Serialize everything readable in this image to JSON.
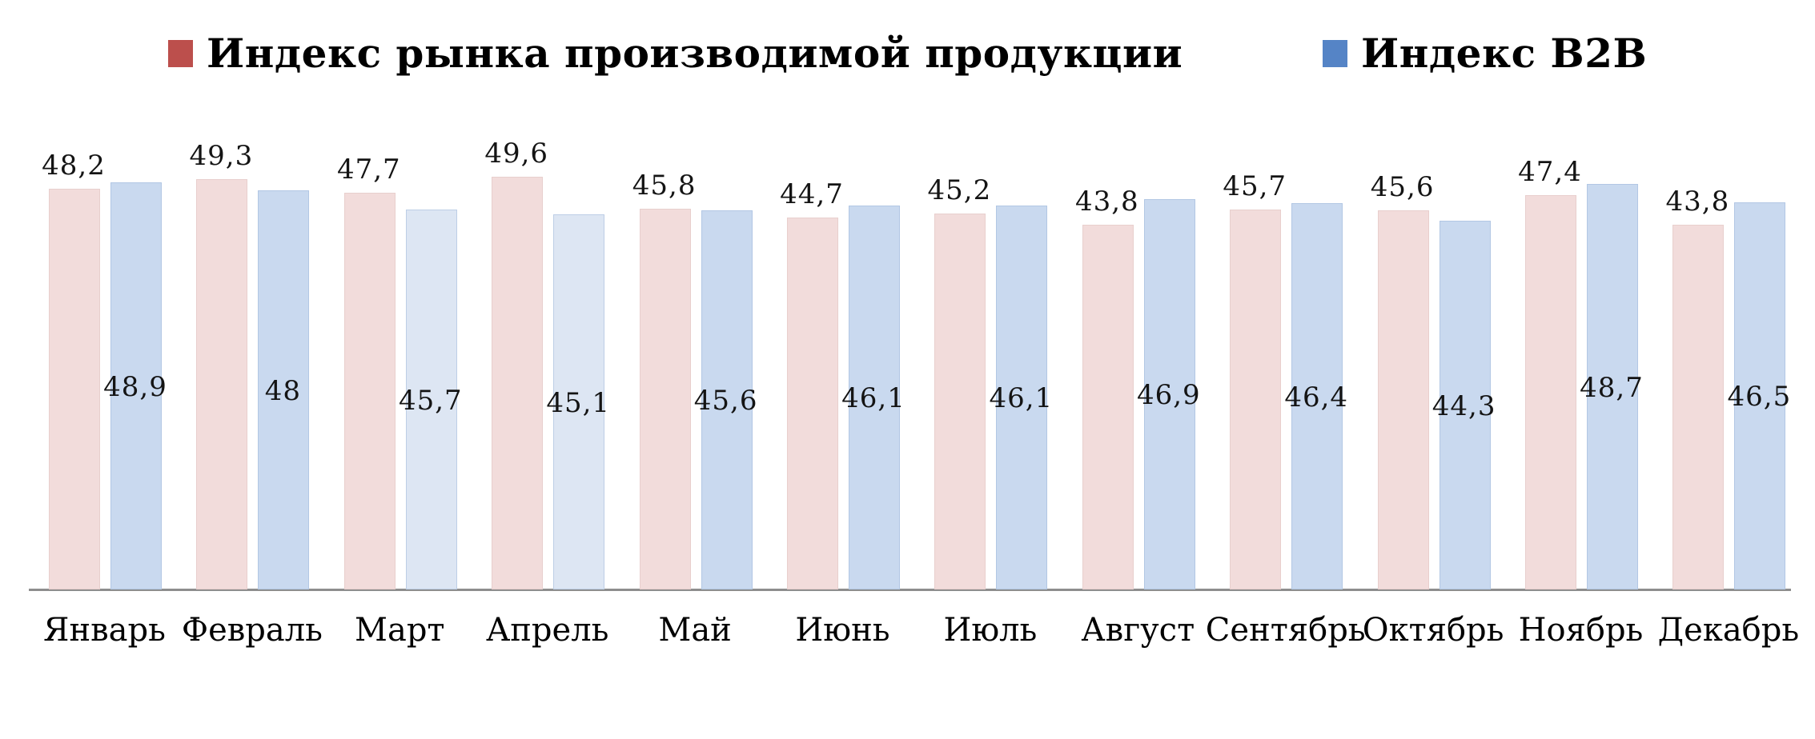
{
  "chart_data": {
    "type": "bar",
    "title": "",
    "xlabel": "",
    "ylabel": "",
    "categories": [
      "Январь",
      "Февраль",
      "Март",
      "Апрель",
      "Май",
      "Июнь",
      "Июль",
      "Август",
      "Сентябрь",
      "Октябрь",
      "Ноябрь",
      "Декабрь"
    ],
    "series": [
      {
        "name": "Индекс рынка производимой продукции",
        "marker_color": "#bc4f4c",
        "bar_color": "#f2dcdb",
        "label_position": "outside-end",
        "values": [
          48.2,
          49.3,
          47.7,
          49.6,
          45.8,
          44.7,
          45.2,
          43.8,
          45.7,
          45.6,
          47.4,
          43.8
        ]
      },
      {
        "name": "Индекс B2B",
        "marker_color": "#5584c6",
        "bar_color": "#c9d9ef",
        "bar_color_overrides": {
          "2": "#dde6f3",
          "3": "#dde6f3"
        },
        "label_position": "center",
        "values": [
          48.9,
          48,
          45.7,
          45.1,
          45.6,
          46.1,
          46.1,
          46.9,
          46.4,
          44.3,
          48.7,
          46.5
        ]
      }
    ],
    "value_axis_visible": false,
    "ylim": [
      0,
      53
    ],
    "grid": false,
    "legend_position": "top",
    "decimal_separator": ",",
    "axis_line_color": "#8e8e8e",
    "label_color": "#141414"
  }
}
